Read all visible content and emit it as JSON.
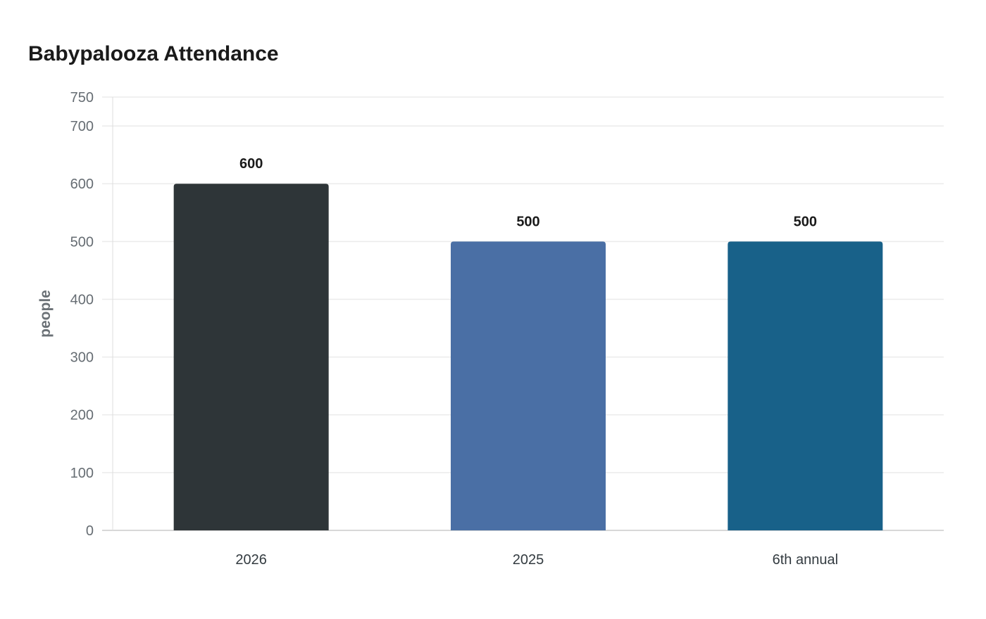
{
  "chart_data": {
    "type": "bar",
    "title": "Babypalooza Attendance",
    "xlabel": "",
    "ylabel": "people",
    "categories": [
      "2026",
      "2025",
      "6th annual"
    ],
    "values": [
      600,
      500,
      500
    ],
    "data_labels": [
      "600",
      "500",
      "500"
    ],
    "colors": [
      "#2e3538",
      "#4a6fa5",
      "#186189"
    ],
    "ylim": [
      0,
      750
    ],
    "yticks": [
      0,
      100,
      200,
      300,
      400,
      500,
      600,
      700,
      750
    ],
    "grid": true
  }
}
